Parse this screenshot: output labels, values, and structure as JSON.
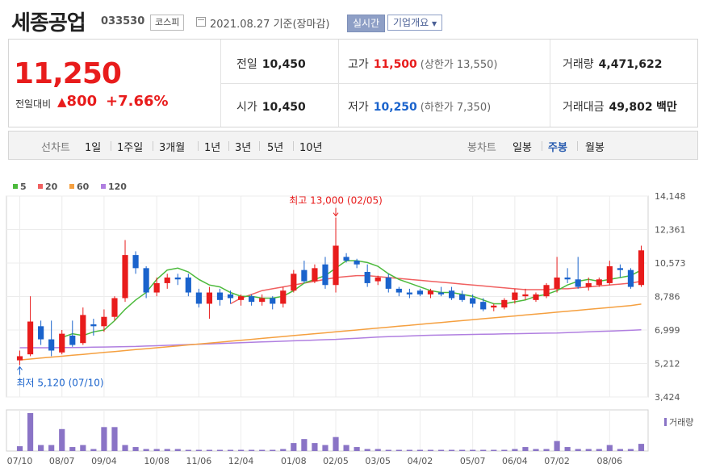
{
  "header": {
    "company_name": "세종공업",
    "code": "033530",
    "market": "코스피",
    "date_text": "2021.08.27 기준(장마감)",
    "realtime_label": "실시간",
    "company_info_label": "기업개요"
  },
  "quote": {
    "price": "11,250",
    "change_label": "전일대비",
    "change_value": "800",
    "change_pct": "+7.66%",
    "prev_label": "전일",
    "prev_value": "10,450",
    "open_label": "시가",
    "open_value": "10,450",
    "high_label": "고가",
    "high_value": "11,500",
    "upper_limit": "(상한가 13,550)",
    "low_label": "저가",
    "low_value": "10,250",
    "lower_limit": "(하한가 7,350)",
    "volume_label": "거래량",
    "volume_value": "4,471,622",
    "amount_label": "거래대금",
    "amount_value": "49,802",
    "amount_unit": "백만"
  },
  "controls": {
    "line_chart_label": "선차트",
    "periods": [
      "1일",
      "1주일",
      "3개월",
      "1년",
      "3년",
      "5년",
      "10년"
    ],
    "candle_label": "봉차트",
    "candle_periods": [
      "일봉",
      "주봉",
      "월봉"
    ],
    "candle_selected": "주봉"
  },
  "colors": {
    "up": "#e81c1c",
    "down": "#1a63cc",
    "ma5": "#4cba3c",
    "ma20": "#f06060",
    "ma60": "#f5a040",
    "ma120": "#b07fe0",
    "volume": "#8a74c6"
  },
  "chart_data": {
    "type": "candlestick",
    "legend": [
      {
        "name": "5",
        "color": "#4cba3c"
      },
      {
        "name": "20",
        "color": "#f06060"
      },
      {
        "name": "60",
        "color": "#f5a040"
      },
      {
        "name": "120",
        "color": "#b07fe0"
      }
    ],
    "y_ticks": [
      "14,148",
      "12,361",
      "10,573",
      "8,786",
      "6,999",
      "5,212",
      "3,424"
    ],
    "y_tick_values": [
      14148,
      12361,
      10573,
      8786,
      6999,
      5212,
      3424
    ],
    "ylim": [
      3424,
      14148
    ],
    "x_tick_labels": [
      "07/10",
      "08/07",
      "09/04",
      "10/08",
      "11/06",
      "12/04",
      "01/08",
      "02/05",
      "03/05",
      "04/02",
      "05/07",
      "06/04",
      "07/02",
      "08/06"
    ],
    "x_tick_index": [
      0,
      4,
      8,
      13,
      17,
      21,
      26,
      30,
      34,
      38,
      43,
      47,
      51,
      56
    ],
    "high_annotation": "최고 13,000 (02/05)",
    "high_annotation_index": 30,
    "high_annotation_value": 13000,
    "low_annotation": "최저 5,120 (07/10)",
    "low_annotation_index": 0,
    "low_annotation_value": 5120,
    "volume_label": "거래량",
    "candles": [
      {
        "o": 5380,
        "h": 5900,
        "l": 5120,
        "c": 5600
      },
      {
        "o": 5700,
        "h": 8800,
        "l": 5600,
        "c": 7450
      },
      {
        "o": 7200,
        "h": 7500,
        "l": 6200,
        "c": 6500
      },
      {
        "o": 6500,
        "h": 7500,
        "l": 5600,
        "c": 5900
      },
      {
        "o": 5800,
        "h": 7000,
        "l": 5700,
        "c": 6800
      },
      {
        "o": 6700,
        "h": 7500,
        "l": 6100,
        "c": 6200
      },
      {
        "o": 6300,
        "h": 8200,
        "l": 6200,
        "c": 7800
      },
      {
        "o": 7300,
        "h": 7600,
        "l": 6700,
        "c": 7200
      },
      {
        "o": 7200,
        "h": 8100,
        "l": 6900,
        "c": 7700
      },
      {
        "o": 7700,
        "h": 8800,
        "l": 7500,
        "c": 8700
      },
      {
        "o": 8700,
        "h": 11800,
        "l": 8500,
        "c": 11000
      },
      {
        "o": 11000,
        "h": 11200,
        "l": 10000,
        "c": 10300
      },
      {
        "o": 10300,
        "h": 10400,
        "l": 8700,
        "c": 9000
      },
      {
        "o": 9000,
        "h": 9800,
        "l": 8800,
        "c": 9500
      },
      {
        "o": 9500,
        "h": 10000,
        "l": 9200,
        "c": 9800
      },
      {
        "o": 9800,
        "h": 10000,
        "l": 9400,
        "c": 9700
      },
      {
        "o": 9800,
        "h": 10000,
        "l": 8800,
        "c": 9000
      },
      {
        "o": 9000,
        "h": 9200,
        "l": 8200,
        "c": 8400
      },
      {
        "o": 8400,
        "h": 9300,
        "l": 7600,
        "c": 9000
      },
      {
        "o": 9000,
        "h": 9200,
        "l": 8300,
        "c": 8600
      },
      {
        "o": 8900,
        "h": 9100,
        "l": 8400,
        "c": 8700
      },
      {
        "o": 8600,
        "h": 8900,
        "l": 8300,
        "c": 8800
      },
      {
        "o": 8800,
        "h": 8900,
        "l": 8300,
        "c": 8500
      },
      {
        "o": 8500,
        "h": 8900,
        "l": 8300,
        "c": 8700
      },
      {
        "o": 8700,
        "h": 8800,
        "l": 8100,
        "c": 8400
      },
      {
        "o": 8400,
        "h": 9300,
        "l": 8200,
        "c": 9100
      },
      {
        "o": 9100,
        "h": 10200,
        "l": 9000,
        "c": 10000
      },
      {
        "o": 10200,
        "h": 10700,
        "l": 9500,
        "c": 9600
      },
      {
        "o": 9600,
        "h": 10500,
        "l": 9500,
        "c": 10300
      },
      {
        "o": 10500,
        "h": 10900,
        "l": 9200,
        "c": 9400
      },
      {
        "o": 9400,
        "h": 13000,
        "l": 9000,
        "c": 11500
      },
      {
        "o": 10900,
        "h": 11100,
        "l": 10600,
        "c": 10700
      },
      {
        "o": 10700,
        "h": 10800,
        "l": 10300,
        "c": 10500
      },
      {
        "o": 10100,
        "h": 10500,
        "l": 9300,
        "c": 9500
      },
      {
        "o": 9600,
        "h": 9900,
        "l": 9400,
        "c": 9800
      },
      {
        "o": 9800,
        "h": 10000,
        "l": 9000,
        "c": 9200
      },
      {
        "o": 9200,
        "h": 9300,
        "l": 8800,
        "c": 9000
      },
      {
        "o": 9000,
        "h": 9200,
        "l": 8700,
        "c": 8900
      },
      {
        "o": 9100,
        "h": 9200,
        "l": 8800,
        "c": 8900
      },
      {
        "o": 8900,
        "h": 9200,
        "l": 8700,
        "c": 9100
      },
      {
        "o": 9000,
        "h": 9300,
        "l": 8800,
        "c": 8900
      },
      {
        "o": 9100,
        "h": 9300,
        "l": 8600,
        "c": 8700
      },
      {
        "o": 8900,
        "h": 9100,
        "l": 8500,
        "c": 8600
      },
      {
        "o": 8700,
        "h": 8900,
        "l": 8200,
        "c": 8400
      },
      {
        "o": 8500,
        "h": 8700,
        "l": 8000,
        "c": 8100
      },
      {
        "o": 8200,
        "h": 8400,
        "l": 8000,
        "c": 8300
      },
      {
        "o": 8200,
        "h": 8700,
        "l": 8100,
        "c": 8600
      },
      {
        "o": 8600,
        "h": 9200,
        "l": 8400,
        "c": 9000
      },
      {
        "o": 8800,
        "h": 9200,
        "l": 8600,
        "c": 8900
      },
      {
        "o": 8600,
        "h": 9000,
        "l": 8500,
        "c": 8900
      },
      {
        "o": 8800,
        "h": 9500,
        "l": 8700,
        "c": 9400
      },
      {
        "o": 9200,
        "h": 10900,
        "l": 9000,
        "c": 9800
      },
      {
        "o": 9800,
        "h": 10300,
        "l": 9500,
        "c": 9700
      },
      {
        "o": 9700,
        "h": 10900,
        "l": 9200,
        "c": 9300
      },
      {
        "o": 9300,
        "h": 9800,
        "l": 9100,
        "c": 9500
      },
      {
        "o": 9400,
        "h": 9800,
        "l": 9300,
        "c": 9700
      },
      {
        "o": 9500,
        "h": 10700,
        "l": 9400,
        "c": 10400
      },
      {
        "o": 10300,
        "h": 10500,
        "l": 9800,
        "c": 10200
      },
      {
        "o": 10200,
        "h": 10300,
        "l": 9200,
        "c": 9300
      },
      {
        "o": 9400,
        "h": 11500,
        "l": 9300,
        "c": 11250
      }
    ],
    "ma5": [
      null,
      null,
      null,
      null,
      6600,
      6800,
      6700,
      6900,
      7000,
      7500,
      8100,
      8600,
      9000,
      9700,
      10200,
      10300,
      10100,
      9700,
      9400,
      9300,
      9000,
      8800,
      8800,
      8700,
      8700,
      8800,
      9100,
      9500,
      9700,
      9900,
      10300,
      10700,
      10700,
      10600,
      10400,
      10000,
      9700,
      9500,
      9300,
      9100,
      9000,
      9000,
      8900,
      8800,
      8600,
      8400,
      8400,
      8500,
      8600,
      8800,
      8900,
      9100,
      9400,
      9600,
      9700,
      9600,
      9700,
      9800,
      9900,
      10200
    ],
    "ma20": [
      null,
      null,
      null,
      null,
      null,
      null,
      null,
      null,
      null,
      null,
      null,
      null,
      null,
      null,
      null,
      null,
      null,
      null,
      null,
      null,
      8400,
      8700,
      8900,
      9100,
      9200,
      9300,
      9400,
      9500,
      9600,
      9700,
      9800,
      9850,
      9900,
      9900,
      9850,
      9800,
      9750,
      9700,
      9650,
      9600,
      9550,
      9500,
      9450,
      9400,
      9350,
      9300,
      9250,
      9200,
      9150,
      9150,
      9150,
      9200,
      9200,
      9250,
      9300,
      9350,
      9400,
      9450,
      9500,
      9600
    ],
    "ma60": [
      5400,
      5450,
      5500,
      5550,
      5600,
      5650,
      5700,
      5750,
      5800,
      5850,
      5900,
      5950,
      6000,
      6050,
      6100,
      6150,
      6200,
      6250,
      6300,
      6350,
      6400,
      6450,
      6500,
      6550,
      6600,
      6650,
      6700,
      6750,
      6800,
      6850,
      6900,
      6950,
      7000,
      7050,
      7100,
      7150,
      7200,
      7250,
      7300,
      7350,
      7400,
      7450,
      7500,
      7550,
      7600,
      7650,
      7700,
      7750,
      7800,
      7850,
      7900,
      7950,
      8000,
      8050,
      8100,
      8150,
      8200,
      8250,
      8300,
      8380
    ],
    "ma120": [
      6050,
      6050,
      6050,
      6050,
      6060,
      6060,
      6070,
      6080,
      6090,
      6100,
      6110,
      6120,
      6140,
      6160,
      6180,
      6200,
      6220,
      6240,
      6260,
      6280,
      6300,
      6320,
      6340,
      6360,
      6380,
      6400,
      6420,
      6440,
      6460,
      6480,
      6500,
      6530,
      6560,
      6590,
      6620,
      6640,
      6660,
      6680,
      6700,
      6720,
      6730,
      6740,
      6750,
      6760,
      6770,
      6780,
      6790,
      6800,
      6810,
      6820,
      6830,
      6840,
      6860,
      6880,
      6900,
      6920,
      6940,
      6960,
      6980,
      7010
    ],
    "volume": [
      0.12,
      0.95,
      0.15,
      0.15,
      0.55,
      0.1,
      0.15,
      0.05,
      0.6,
      0.6,
      0.15,
      0.1,
      0.05,
      0.05,
      0.05,
      0.05,
      0.03,
      0.03,
      0.03,
      0.03,
      0.03,
      0.03,
      0.03,
      0.03,
      0.03,
      0.05,
      0.2,
      0.3,
      0.2,
      0.15,
      0.35,
      0.15,
      0.1,
      0.05,
      0.05,
      0.03,
      0.03,
      0.03,
      0.03,
      0.03,
      0.03,
      0.03,
      0.03,
      0.03,
      0.03,
      0.03,
      0.03,
      0.05,
      0.1,
      0.05,
      0.05,
      0.25,
      0.1,
      0.05,
      0.05,
      0.05,
      0.15,
      0.05,
      0.05,
      0.18
    ]
  }
}
